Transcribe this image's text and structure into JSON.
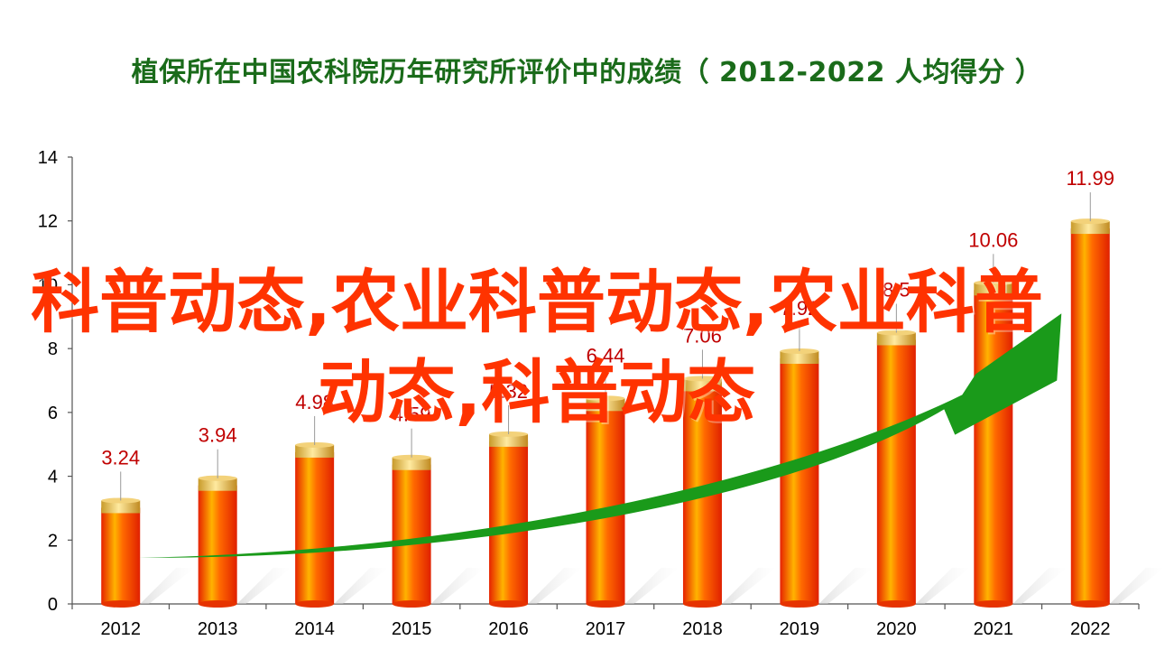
{
  "title": "植保所在中国农科院历年研究所评价中的成绩（ 2012-2022  人均得分 ）",
  "overlay_text": "科普动态,农业科普动态,农业科普动态,科普动态",
  "colors": {
    "title": "#1a6b1a",
    "bar": "#ff3300",
    "bar_cap": "#e8c25a",
    "label": "#c00000",
    "arrow": "#1a9a1a",
    "overlay": "#ff3300"
  },
  "chart_data": {
    "type": "bar",
    "title": "植保所在中国农科院历年研究所评价中的成绩（ 2012-2022  人均得分 ）",
    "xlabel": "",
    "ylabel": "",
    "categories": [
      "2012",
      "2013",
      "2014",
      "2015",
      "2016",
      "2017",
      "2018",
      "2019",
      "2020",
      "2021",
      "2022"
    ],
    "values": [
      3.24,
      3.94,
      4.98,
      4.59,
      5.32,
      6.44,
      7.06,
      7.92,
      8.5,
      10.06,
      11.99
    ],
    "data_labels": [
      "3.24",
      "3.94",
      "4.98",
      "4.59",
      "5.32",
      "6.44",
      "7.06",
      "7.92",
      "8.5",
      "10.06",
      "11.99"
    ],
    "ylim": [
      0,
      14
    ],
    "yticks": [
      0,
      2,
      4,
      6,
      8,
      10,
      12,
      14
    ],
    "grid": false,
    "trend_arrow": true
  }
}
